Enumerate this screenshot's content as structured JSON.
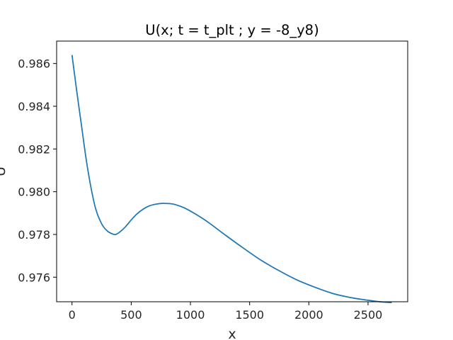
{
  "chart_data": {
    "type": "line",
    "title": "U(x; t = t_plt ; y = -8_y8)",
    "xlabel": "x",
    "ylabel": "U",
    "xlim": [
      -130,
      2835
    ],
    "ylim": [
      0.97485,
      0.98705
    ],
    "xticks": [
      0,
      500,
      1000,
      1500,
      2000,
      2500
    ],
    "xtick_labels": [
      "0",
      "500",
      "1000",
      "1500",
      "2000",
      "2500"
    ],
    "yticks": [
      0.976,
      0.978,
      0.98,
      0.982,
      0.984,
      0.986
    ],
    "ytick_labels": [
      "0.976",
      "0.978",
      "0.980",
      "0.982",
      "0.984",
      "0.986"
    ],
    "grid": false,
    "series": [
      {
        "color": "#1f77b4",
        "x": [
          0,
          40,
          80,
          120,
          160,
          200,
          250,
          300,
          350,
          370,
          400,
          450,
          500,
          550,
          600,
          650,
          700,
          750,
          800,
          830,
          870,
          950,
          1050,
          1150,
          1300,
          1450,
          1600,
          1750,
          1900,
          2050,
          2200,
          2350,
          2500,
          2600,
          2700
        ],
        "y": [
          0.9864,
          0.9847,
          0.9831,
          0.9815,
          0.9802,
          0.9792,
          0.9785,
          0.97815,
          0.97801,
          0.978,
          0.9781,
          0.97835,
          0.97868,
          0.97897,
          0.97918,
          0.97933,
          0.97941,
          0.97945,
          0.97945,
          0.97944,
          0.9794,
          0.97924,
          0.97893,
          0.97857,
          0.97795,
          0.97735,
          0.97678,
          0.9763,
          0.97587,
          0.97553,
          0.97524,
          0.97505,
          0.97492,
          0.97485,
          0.97481
        ]
      }
    ]
  }
}
